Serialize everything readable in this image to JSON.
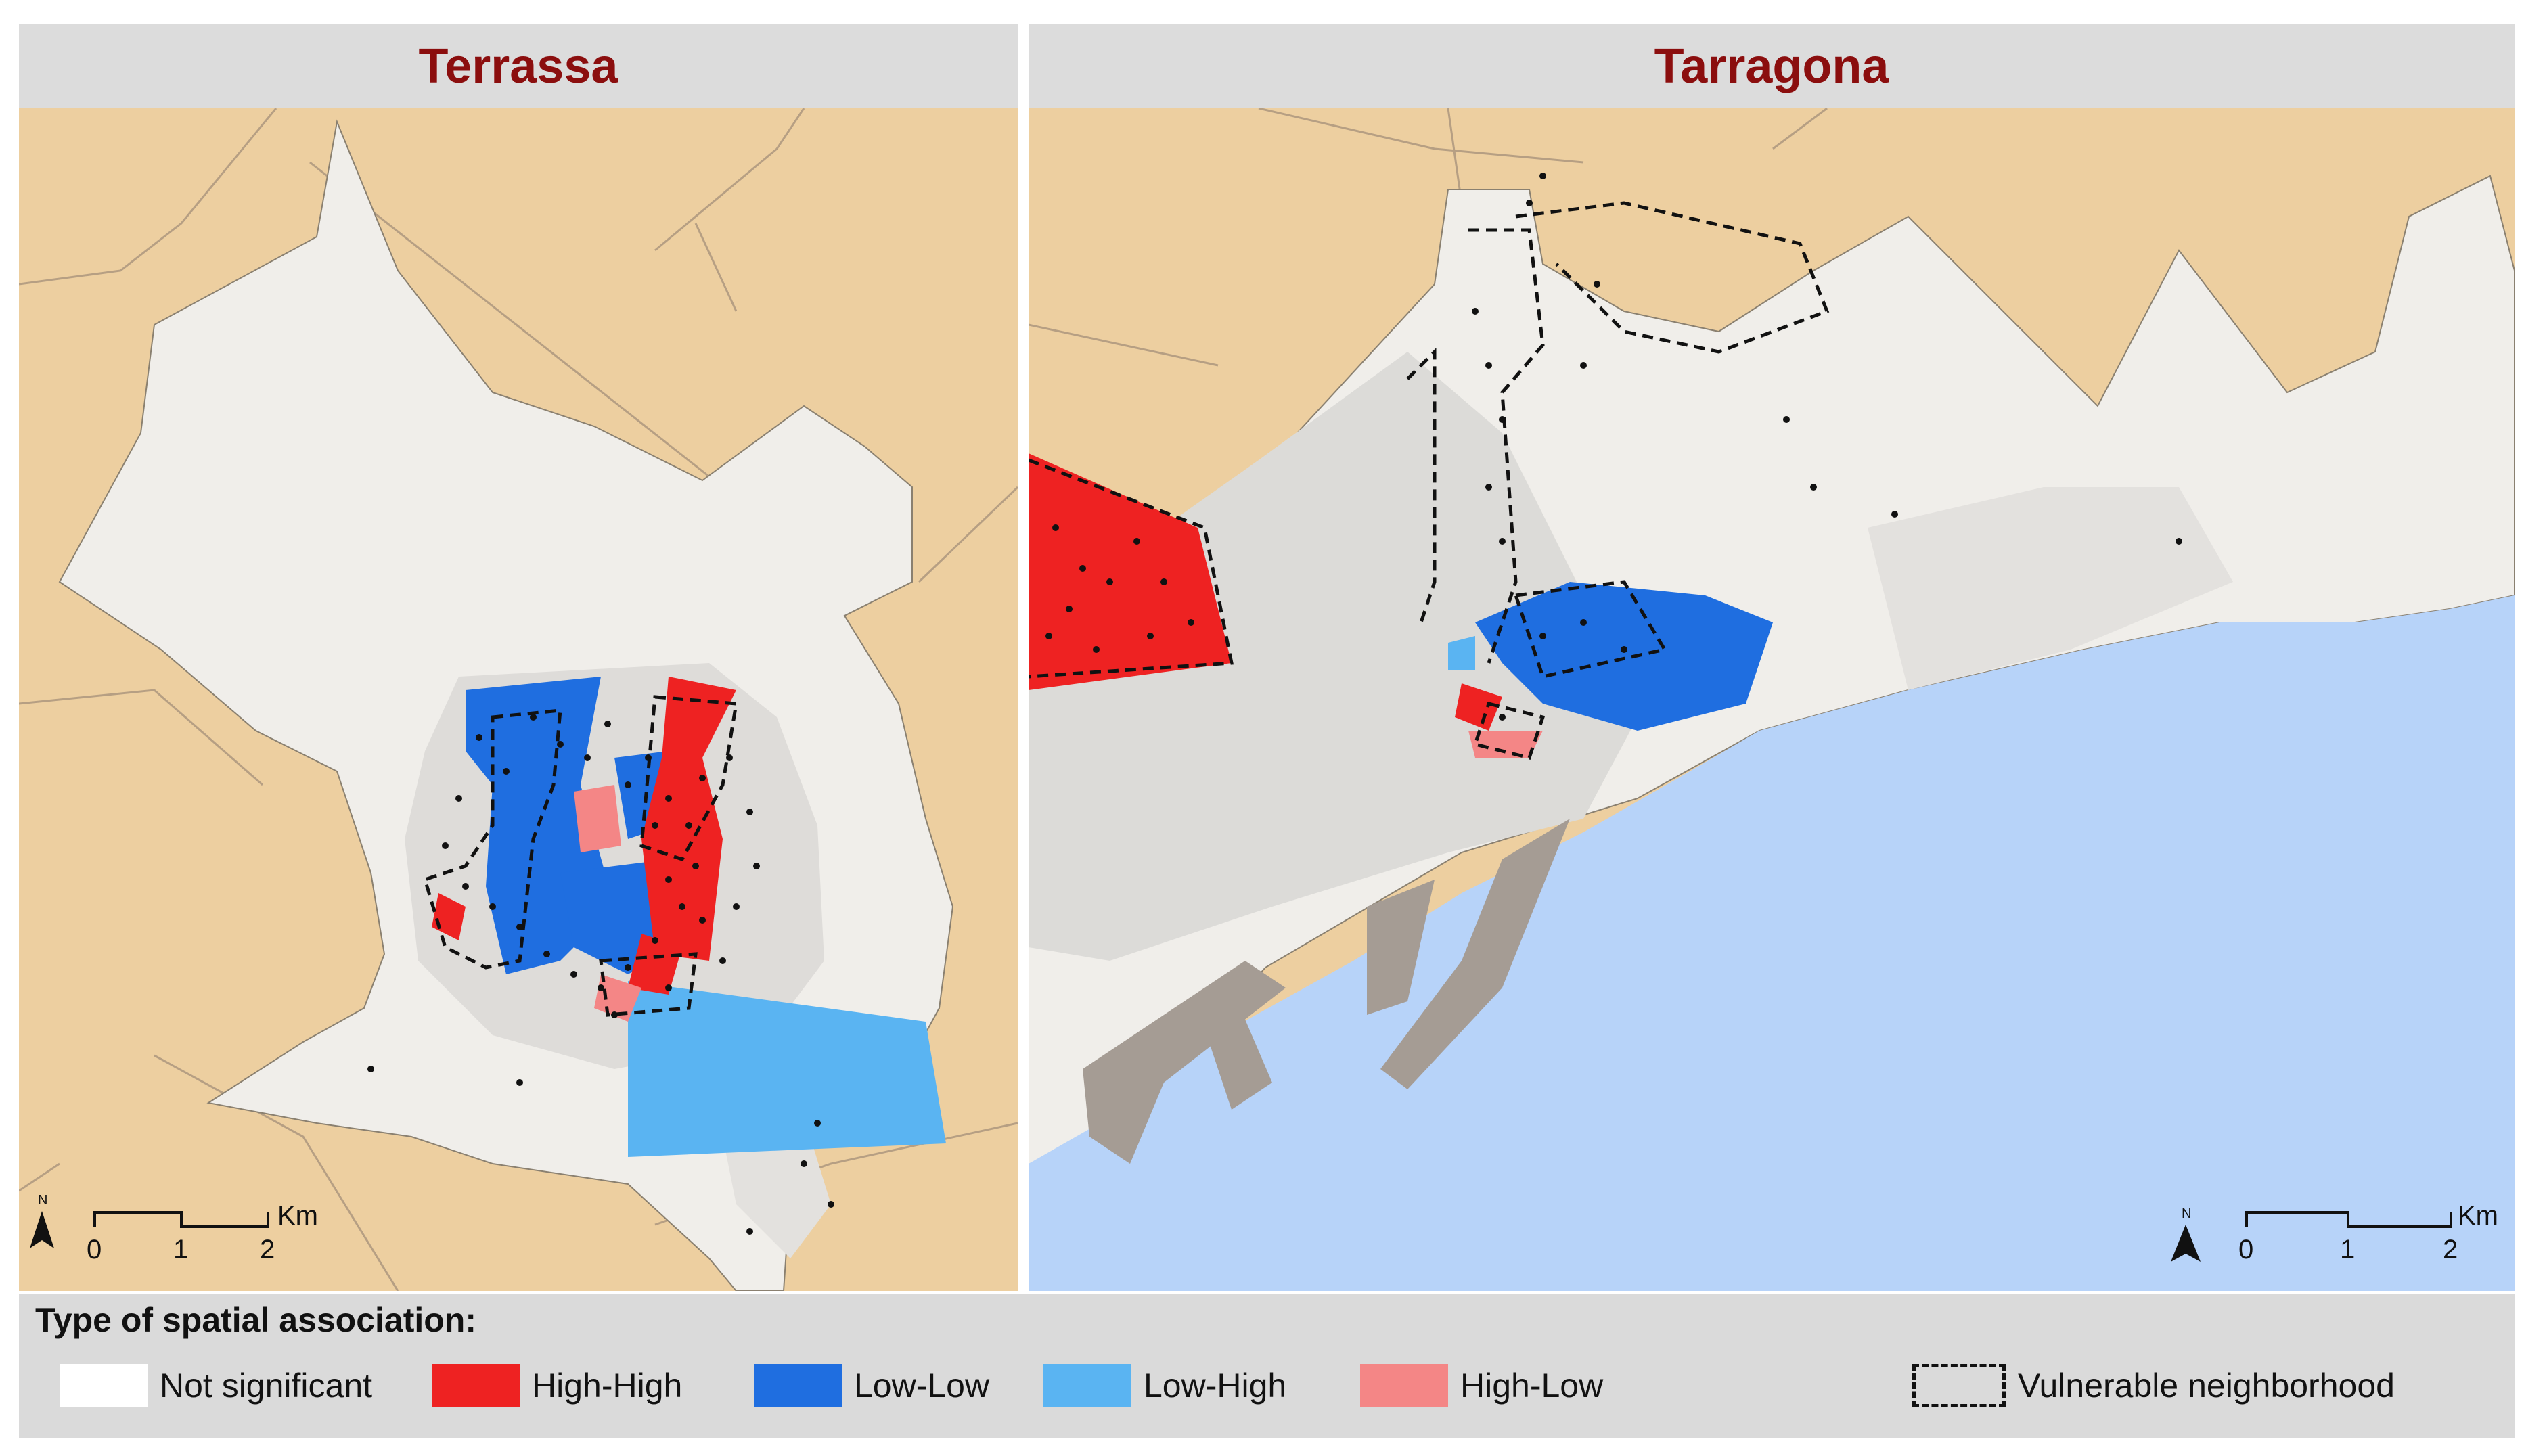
{
  "panels": [
    {
      "title": "Terrassa",
      "scale": {
        "ticks": [
          "0",
          "1",
          "2"
        ],
        "unit": "Km"
      },
      "north": "N"
    },
    {
      "title": "Tarragona",
      "scale": {
        "ticks": [
          "0",
          "1",
          "2"
        ],
        "unit": "Km"
      },
      "north": "N"
    }
  ],
  "legend": {
    "title": "Type of spatial association:",
    "items": [
      {
        "label": "Not significant",
        "color": "#ffffff"
      },
      {
        "label": "High-High",
        "color": "#ee2222"
      },
      {
        "label": "Low-Low",
        "color": "#1f6ee0"
      },
      {
        "label": "Low-High",
        "color": "#5ab4f2"
      },
      {
        "label": "High-Low",
        "color": "#f48686"
      }
    ],
    "boundary_label": "Vulnerable neighborhood"
  },
  "colors": {
    "land_outside": "#edcfa0",
    "municipality": "#f0eeea",
    "urban": "#d9d8d5",
    "sea": "#b7d3f9",
    "port": "#a59c94",
    "title": "#8b0e0e"
  }
}
